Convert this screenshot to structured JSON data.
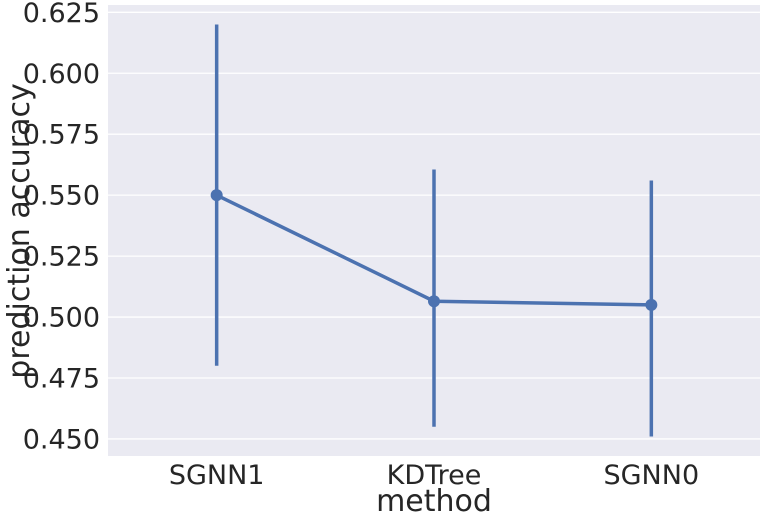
{
  "chart_data": {
    "type": "point",
    "title": "",
    "xlabel": "method",
    "ylabel": "prediction accuracy",
    "categories": [
      "SGNN1",
      "KDTree",
      "SGNN0"
    ],
    "values": [
      0.55,
      0.5065,
      0.505
    ],
    "error_low": [
      0.48,
      0.455,
      0.451
    ],
    "error_high": [
      0.62,
      0.5605,
      0.556
    ],
    "ylim": [
      0.443,
      0.628
    ],
    "yticks": [
      "0.450",
      "0.475",
      "0.500",
      "0.525",
      "0.550",
      "0.575",
      "0.600",
      "0.625"
    ],
    "grid": true,
    "colors": {
      "series": "#4c72b0",
      "background": "#eaeaf2",
      "grid": "#ffffff"
    }
  }
}
